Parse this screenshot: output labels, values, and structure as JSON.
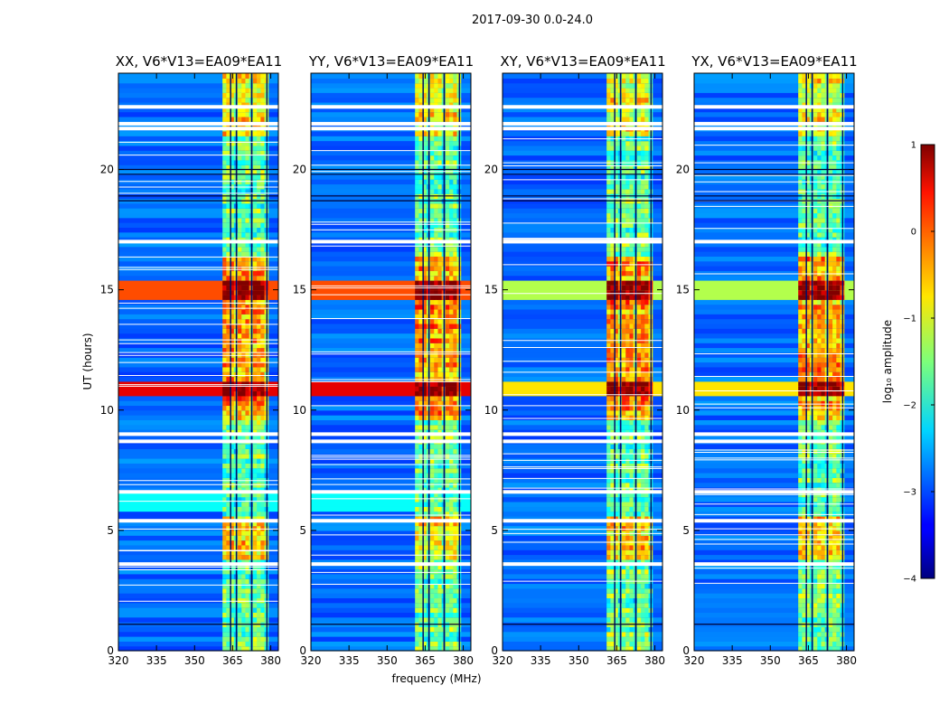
{
  "suptitle": "2017-09-30 0.0-24.0",
  "xlabel": "frequency (MHz)",
  "ylabel": "UT (hours)",
  "colorbar": {
    "label": "log₁₀ amplitude",
    "range": [
      -4,
      1
    ],
    "ticks": [
      "1",
      "0",
      "−1",
      "−2",
      "−3",
      "−4"
    ],
    "tick_values": [
      1,
      0,
      -1,
      -2,
      -3,
      -4
    ],
    "colormap": "jet"
  },
  "chart_data": {
    "type": "heatmap",
    "x_range_mhz": [
      320,
      383
    ],
    "y_range_hours": [
      0,
      24
    ],
    "x_ticks": [
      "320",
      "335",
      "350",
      "365",
      "380"
    ],
    "x_tick_values": [
      320,
      335,
      350,
      365,
      380
    ],
    "y_ticks": [
      "0",
      "5",
      "10",
      "15",
      "20"
    ],
    "y_tick_values": [
      0,
      5,
      10,
      15,
      20
    ],
    "signal_band_mhz": [
      361,
      379
    ],
    "signal_subband_centers_mhz": [
      363.5,
      369.5,
      375.5
    ],
    "flagged_rows_hours": [
      21.7,
      21.9,
      22.6,
      9.0,
      8.7,
      17.0,
      6.6,
      5.4,
      3.6
    ],
    "rfi_events_hours": [
      {
        "t": 10.9,
        "level": 0.9
      },
      {
        "t": 15.0,
        "level": 0.8
      }
    ],
    "panels": [
      {
        "title": "XX, V6*V13=EA09*EA11",
        "pol": "XX"
      },
      {
        "title": "YY, V6*V13=EA09*EA11",
        "pol": "YY"
      },
      {
        "title": "XY, V6*V13=EA09*EA11",
        "pol": "XY"
      },
      {
        "title": "YX, V6*V13=EA09*EA11",
        "pol": "YX"
      }
    ]
  }
}
